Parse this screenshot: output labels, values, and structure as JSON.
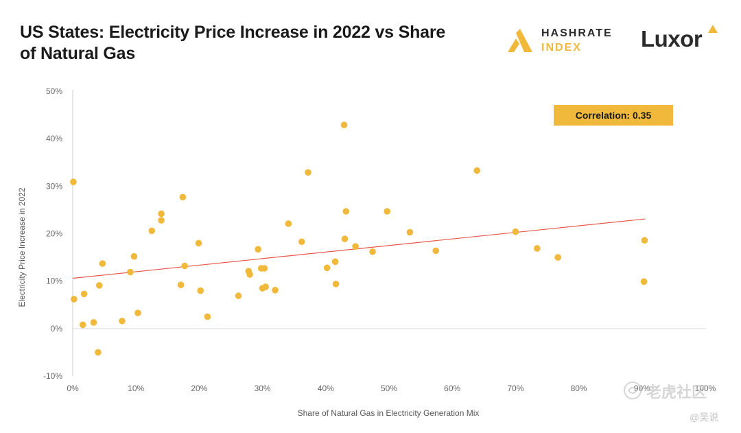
{
  "title": "US States: Electricity Price Increase in 2022 vs Share of Natural Gas",
  "logos": {
    "hashrate_line1": "HASHRATE",
    "hashrate_line2": "INDEX",
    "luxor": "Luxor"
  },
  "watermark": {
    "text": "老虎社区",
    "author": "@吴说"
  },
  "colors": {
    "points": "#f0b93b",
    "trendline": "#e8564a",
    "badge": "#f0b93b"
  },
  "chart_data": {
    "type": "scatter",
    "xlabel": "Share of Natural Gas in Electricity Generation Mix",
    "ylabel": "Electricity Price Increase in 2022",
    "xlim": [
      0,
      100
    ],
    "ylim": [
      -10,
      50
    ],
    "xticks": [
      {
        "value": 0,
        "label": "0%"
      },
      {
        "value": 10,
        "label": "10%"
      },
      {
        "value": 20,
        "label": "20%"
      },
      {
        "value": 30,
        "label": "30%"
      },
      {
        "value": 40,
        "label": "40%"
      },
      {
        "value": 50,
        "label": "50%"
      },
      {
        "value": 60,
        "label": "60%"
      },
      {
        "value": 70,
        "label": "70%"
      },
      {
        "value": 80,
        "label": "80%"
      },
      {
        "value": 90,
        "label": "90%"
      },
      {
        "value": 100,
        "label": "100%"
      }
    ],
    "yticks": [
      {
        "value": -10,
        "label": "-10%"
      },
      {
        "value": 0,
        "label": "0%"
      },
      {
        "value": 10,
        "label": "10%"
      },
      {
        "value": 20,
        "label": "20%"
      },
      {
        "value": 30,
        "label": "30%"
      },
      {
        "value": 40,
        "label": "40%"
      },
      {
        "value": 50,
        "label": "50%"
      }
    ],
    "annotation": "Correlation: 0.35",
    "trendline": {
      "x": [
        0,
        90.5
      ],
      "y": [
        10.6,
        23.1
      ]
    },
    "points": [
      {
        "x": 0.1,
        "y": 30.9
      },
      {
        "x": 0.2,
        "y": 6.2
      },
      {
        "x": 1.6,
        "y": 0.8
      },
      {
        "x": 1.8,
        "y": 7.3
      },
      {
        "x": 3.3,
        "y": 1.3
      },
      {
        "x": 4.0,
        "y": -5.0
      },
      {
        "x": 4.2,
        "y": 9.1
      },
      {
        "x": 4.7,
        "y": 13.7
      },
      {
        "x": 7.8,
        "y": 1.6
      },
      {
        "x": 9.1,
        "y": 11.9
      },
      {
        "x": 9.7,
        "y": 15.2
      },
      {
        "x": 10.3,
        "y": 3.3
      },
      {
        "x": 12.5,
        "y": 20.6
      },
      {
        "x": 14.0,
        "y": 24.2
      },
      {
        "x": 14.0,
        "y": 22.8
      },
      {
        "x": 17.1,
        "y": 9.2
      },
      {
        "x": 17.4,
        "y": 27.7
      },
      {
        "x": 17.7,
        "y": 13.2
      },
      {
        "x": 19.9,
        "y": 18.0
      },
      {
        "x": 20.2,
        "y": 8.0
      },
      {
        "x": 21.3,
        "y": 2.5
      },
      {
        "x": 26.2,
        "y": 6.9
      },
      {
        "x": 27.8,
        "y": 12.1
      },
      {
        "x": 28.0,
        "y": 11.4
      },
      {
        "x": 29.3,
        "y": 16.7
      },
      {
        "x": 29.8,
        "y": 12.7
      },
      {
        "x": 30.0,
        "y": 8.5
      },
      {
        "x": 30.3,
        "y": 12.7
      },
      {
        "x": 30.5,
        "y": 8.8
      },
      {
        "x": 32.0,
        "y": 8.1
      },
      {
        "x": 34.1,
        "y": 22.1
      },
      {
        "x": 36.2,
        "y": 18.3
      },
      {
        "x": 37.2,
        "y": 32.9
      },
      {
        "x": 40.2,
        "y": 12.8
      },
      {
        "x": 41.5,
        "y": 14.1
      },
      {
        "x": 41.6,
        "y": 9.4
      },
      {
        "x": 42.9,
        "y": 42.9
      },
      {
        "x": 43.0,
        "y": 18.9
      },
      {
        "x": 43.2,
        "y": 24.7
      },
      {
        "x": 44.7,
        "y": 17.3
      },
      {
        "x": 47.4,
        "y": 16.2
      },
      {
        "x": 49.7,
        "y": 24.7
      },
      {
        "x": 53.3,
        "y": 20.3
      },
      {
        "x": 57.4,
        "y": 16.4
      },
      {
        "x": 63.9,
        "y": 33.3
      },
      {
        "x": 70.0,
        "y": 20.4
      },
      {
        "x": 73.4,
        "y": 16.9
      },
      {
        "x": 76.7,
        "y": 15.0
      },
      {
        "x": 90.3,
        "y": 9.9
      },
      {
        "x": 90.4,
        "y": 18.6
      }
    ]
  }
}
